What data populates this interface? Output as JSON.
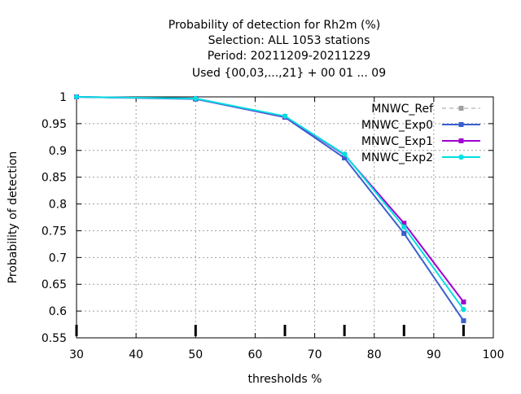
{
  "chart_data": {
    "type": "line",
    "title_lines": [
      "Probability of detection  for Rh2m (%)",
      "Selection: ALL    1053 stations",
      "Period: 20211209-20211229",
      "Used {00,03,...,21} + 00 01 ... 09"
    ],
    "xlabel": "thresholds %",
    "ylabel": "Probability of detection",
    "xlim": [
      30,
      100
    ],
    "ylim": [
      0.55,
      1.0
    ],
    "xticks": [
      30,
      40,
      50,
      60,
      70,
      80,
      90,
      100
    ],
    "yticks": [
      0.55,
      0.6,
      0.65,
      0.7,
      0.75,
      0.8,
      0.85,
      0.9,
      0.95,
      1
    ],
    "ytick_labels": [
      "0.55",
      "0.6",
      "0.65",
      "0.7",
      "0.75",
      "0.8",
      "0.85",
      "0.9",
      "0.95",
      "1"
    ],
    "grid": true,
    "legend_position": "top-right",
    "threshold_markers": [
      30,
      50,
      65,
      75,
      85,
      95
    ],
    "x": [
      30,
      50,
      65,
      75,
      85,
      95
    ],
    "series": [
      {
        "name": "MNWC_Ref",
        "color": "#a0a0a0",
        "dashed": true,
        "marker": "square",
        "values": [
          1.0,
          0.996,
          0.962,
          0.886,
          0.745,
          0.582
        ]
      },
      {
        "name": "MNWC_Exp0",
        "color": "#3a5fcd",
        "dashed": false,
        "marker": "square",
        "values": [
          1.0,
          0.996,
          0.962,
          0.886,
          0.745,
          0.582
        ]
      },
      {
        "name": "MNWC_Exp1",
        "color": "#a000d0",
        "dashed": false,
        "marker": "square",
        "values": [
          1.0,
          0.997,
          0.963,
          0.892,
          0.764,
          0.617
        ]
      },
      {
        "name": "MNWC_Exp2",
        "color": "#00e0e0",
        "dashed": false,
        "marker": "circle",
        "values": [
          1.0,
          0.997,
          0.964,
          0.893,
          0.757,
          0.603
        ]
      }
    ]
  }
}
